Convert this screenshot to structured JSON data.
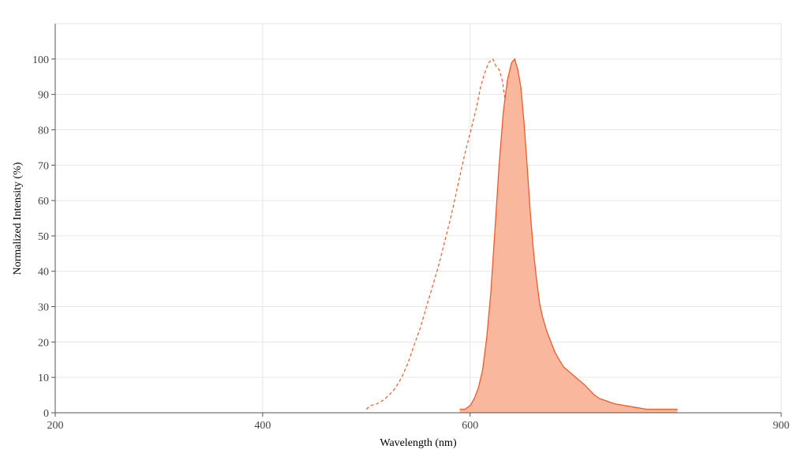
{
  "chart_data": {
    "type": "area",
    "title": "",
    "xlabel": "Wavelength (nm)",
    "ylabel": "Normalized Intensity (%)",
    "xlim": [
      200,
      900
    ],
    "ylim": [
      0,
      110
    ],
    "x_ticks": [
      200,
      400,
      600,
      900
    ],
    "y_ticks": [
      0,
      10,
      20,
      30,
      40,
      50,
      60,
      70,
      80,
      90,
      100
    ],
    "grid": true,
    "legend": "none",
    "colors": {
      "line": "#f05a28",
      "fill": "#f9b89d"
    },
    "series": [
      {
        "style": "dashed",
        "filled": false,
        "x": [
          500,
          504,
          510,
          516,
          522,
          528,
          534,
          540,
          546,
          552,
          558,
          564,
          570,
          576,
          582,
          588,
          594,
          600,
          606,
          610,
          614,
          618,
          622,
          625,
          628,
          631,
          634,
          637,
          640,
          643,
          646,
          649,
          652,
          655,
          658,
          661,
          664,
          667,
          670
        ],
        "y": [
          1,
          2,
          2.5,
          3.5,
          5,
          7,
          10,
          14,
          19,
          24,
          30,
          36,
          42,
          49,
          56,
          64,
          72,
          79,
          86,
          92,
          96,
          99,
          100,
          98,
          97,
          94,
          88,
          80,
          72,
          63,
          54,
          45,
          37,
          30,
          24,
          19,
          15,
          13,
          13
        ]
      },
      {
        "style": "solid",
        "filled": true,
        "x": [
          590,
          595,
          600,
          604,
          608,
          612,
          616,
          620,
          624,
          628,
          632,
          636,
          640,
          643,
          646,
          649,
          652,
          655,
          658,
          661,
          664,
          667,
          670,
          674,
          678,
          682,
          686,
          690,
          694,
          698,
          702,
          706,
          710,
          715,
          720,
          725,
          730,
          735,
          740,
          750,
          760,
          770,
          780,
          790,
          800
        ],
        "y": [
          1,
          1,
          2,
          4,
          7,
          12,
          21,
          34,
          52,
          70,
          85,
          94,
          99,
          100,
          97,
          92,
          82,
          70,
          57,
          46,
          38,
          31,
          27,
          23,
          20,
          17,
          15,
          13,
          12,
          11,
          10,
          9,
          8,
          6.5,
          5,
          4,
          3.5,
          3,
          2.5,
          2,
          1.5,
          1,
          1,
          1,
          1
        ]
      }
    ]
  }
}
